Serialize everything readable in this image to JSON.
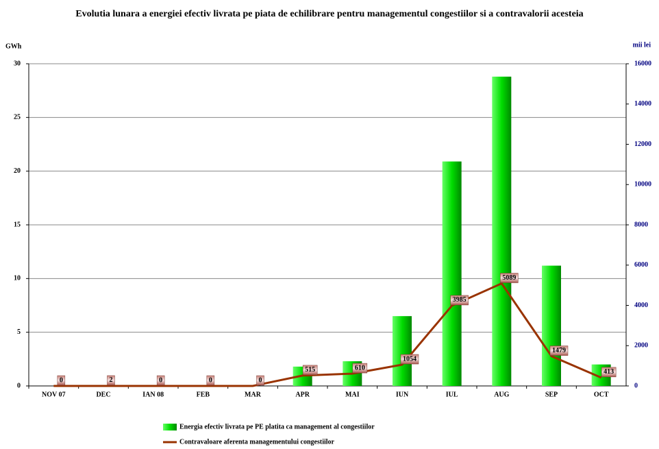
{
  "chart_data": {
    "type": "combo",
    "title": "Evolutia lunara a energiei efectiv livrata pe piata de echilibrare pentru managementul congestiilor si a contravalorii acesteia",
    "y_label": "GWh",
    "y2_label": "mii lei",
    "categories": [
      "NOV 07",
      "DEC",
      "IAN 08",
      "FEB",
      "MAR",
      "APR",
      "MAI",
      "IUN",
      "IUL",
      "AUG",
      "SEP",
      "OCT"
    ],
    "series": [
      {
        "name": "Energia efectiv livrata pe PE platita ca management al congestiilor",
        "type": "bar",
        "color": "#00cc00",
        "values": [
          0,
          0,
          0,
          0,
          0,
          1.8,
          2.3,
          6.5,
          20.9,
          28.8,
          11.2,
          2.0
        ]
      },
      {
        "name": "Contravaloare aferenta managementului congestiilor",
        "type": "line",
        "axis": "y2",
        "color": "#993300",
        "values": [
          0,
          2,
          0,
          0,
          0,
          515,
          610,
          1054,
          3985,
          5089,
          1479,
          413
        ]
      }
    ],
    "ylim": [
      0,
      30
    ],
    "yticks": [
      0,
      5,
      10,
      15,
      20,
      25,
      30
    ],
    "y2lim": [
      0,
      16000
    ],
    "y2ticks": [
      0,
      2000,
      4000,
      6000,
      8000,
      10000,
      12000,
      14000,
      16000
    ],
    "grid": true,
    "legend": "bottom"
  }
}
